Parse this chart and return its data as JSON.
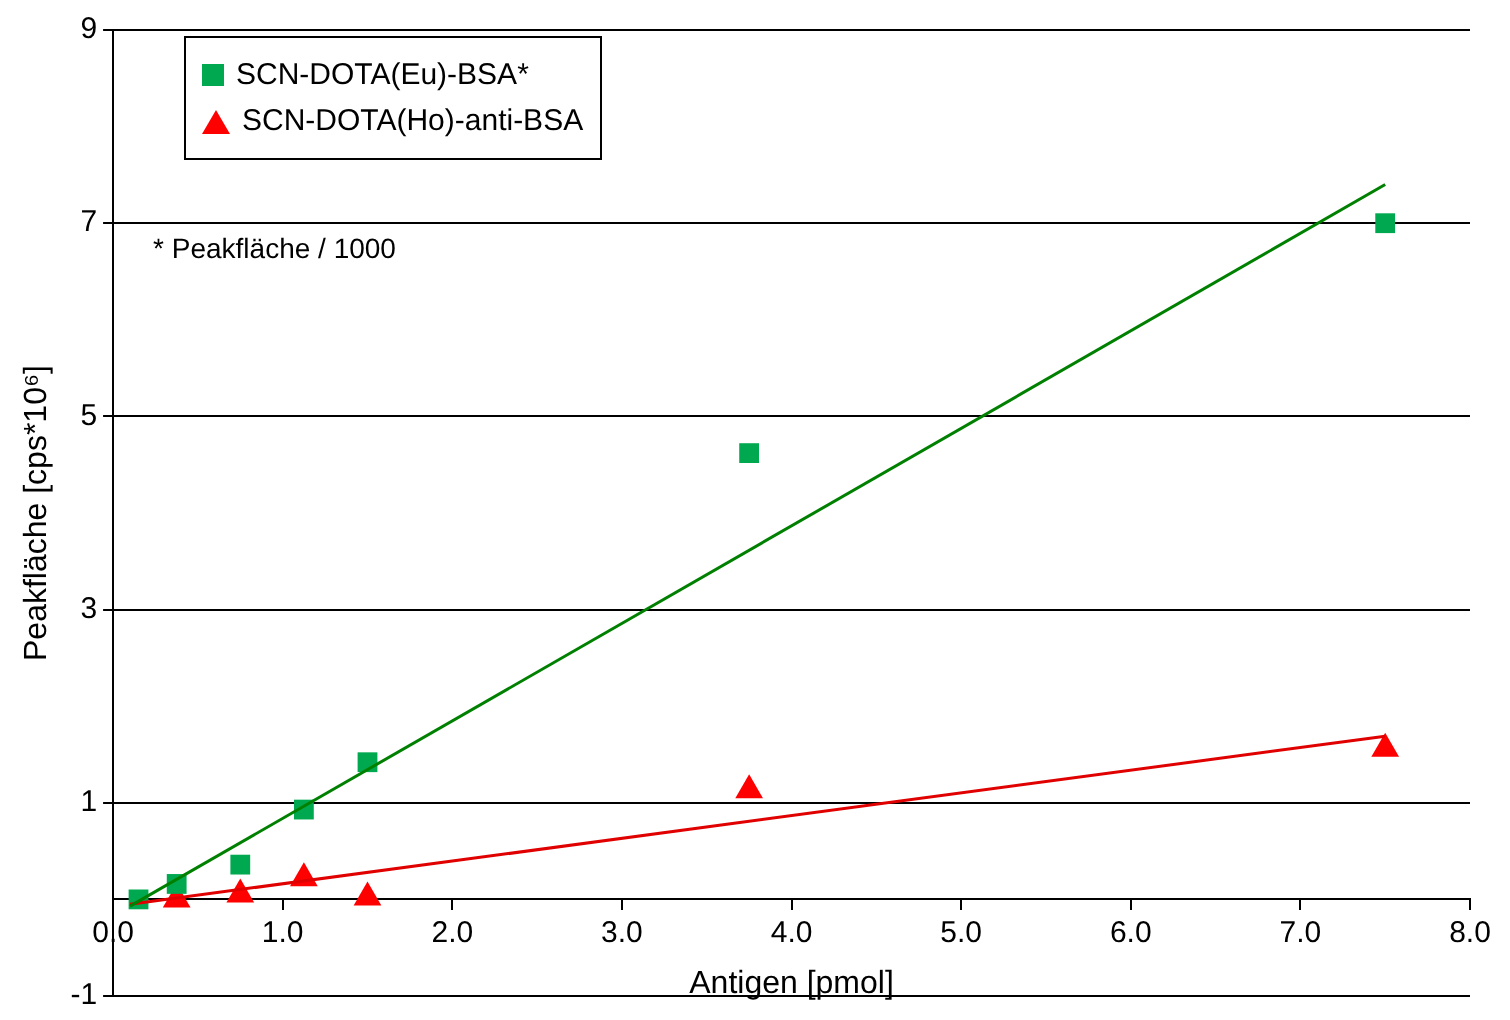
{
  "chart_data": {
    "type": "scatter",
    "xlabel": "Antigen [pmol]",
    "ylabel": "Peakfläche [cps*10⁶]",
    "annotations": [
      "* Peakfläche / 1000"
    ],
    "series": [
      {
        "name": "SCN-DOTA(Eu)-BSA*",
        "color": "#00a84f",
        "type": "scatter",
        "marker": "square",
        "x": [
          0.15,
          0.375,
          0.75,
          1.125,
          1.5,
          3.75,
          7.5
        ],
        "values": [
          0.0,
          0.16,
          0.36,
          0.93,
          1.42,
          4.62,
          7.0
        ]
      },
      {
        "name": "SCN-DOTA(Ho)-anti-BSA",
        "color": "#ff0000",
        "type": "scatter",
        "marker": "triangle",
        "x": [
          0.375,
          0.75,
          1.125,
          1.5,
          3.75,
          7.5
        ],
        "values": [
          0.0,
          0.05,
          0.22,
          0.02,
          1.13,
          1.56
        ]
      },
      {
        "color": "#008000",
        "type": "line",
        "marker": "none",
        "x": [
          0.1,
          7.5
        ],
        "values": [
          -0.07,
          7.4
        ]
      },
      {
        "color": "#e00000",
        "type": "line",
        "marker": "none",
        "x": [
          0.1,
          7.5
        ],
        "values": [
          -0.05,
          1.69
        ]
      }
    ],
    "xlim": [
      0,
      8
    ],
    "xticks": [
      {
        "value": 0,
        "label": "0.0"
      },
      {
        "value": 1,
        "label": "1.0"
      },
      {
        "value": 2,
        "label": "2.0"
      },
      {
        "value": 3,
        "label": "3.0"
      },
      {
        "value": 4,
        "label": "4.0"
      },
      {
        "value": 5,
        "label": "5.0"
      },
      {
        "value": 6,
        "label": "6.0"
      },
      {
        "value": 7,
        "label": "7.0"
      },
      {
        "value": 8,
        "label": "8.0"
      }
    ],
    "ylim": [
      -1,
      9
    ],
    "yticks": [
      -1,
      1,
      3,
      5,
      7,
      9
    ],
    "grid": "y",
    "legend": "top left"
  }
}
